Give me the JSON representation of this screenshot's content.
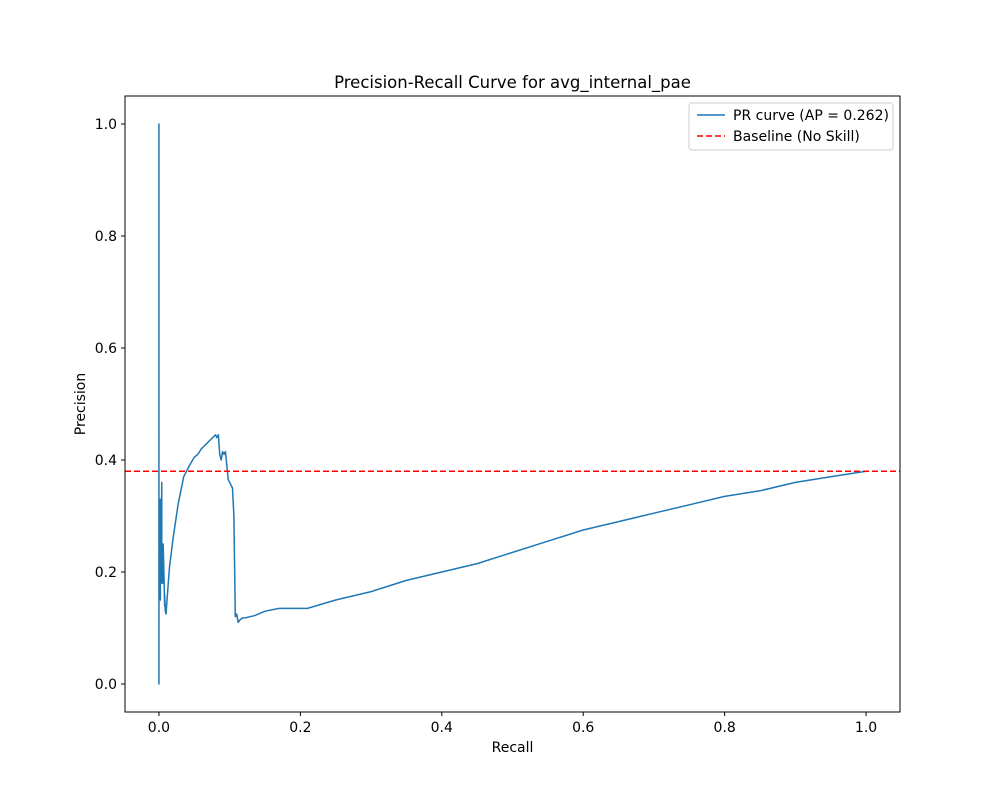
{
  "chart_data": {
    "type": "line",
    "title": "Precision-Recall Curve for avg_internal_pae",
    "xlabel": "Recall",
    "ylabel": "Precision",
    "xlim": [
      -0.048,
      1.048
    ],
    "ylim": [
      -0.05,
      1.05
    ],
    "xticks": [
      "0.0",
      "0.2",
      "0.4",
      "0.6",
      "0.8",
      "1.0"
    ],
    "yticks": [
      "0.0",
      "0.2",
      "0.4",
      "0.6",
      "0.8",
      "1.0"
    ],
    "grid": false,
    "legend_position": "top-right",
    "series": [
      {
        "name": "PR curve (AP = 0.262)",
        "color": "#1f77b4",
        "style": "solid",
        "x": [
          0.0,
          0.0,
          0.0,
          0.0,
          0.001,
          0.002,
          0.002,
          0.003,
          0.004,
          0.004,
          0.005,
          0.006,
          0.006,
          0.007,
          0.008,
          0.008,
          0.009,
          0.01,
          0.012,
          0.015,
          0.02,
          0.027,
          0.035,
          0.043,
          0.05,
          0.055,
          0.06,
          0.064,
          0.068,
          0.072,
          0.076,
          0.08,
          0.082,
          0.084,
          0.086,
          0.088,
          0.09,
          0.092,
          0.094,
          0.096,
          0.098,
          0.1,
          0.102,
          0.104,
          0.106,
          0.108,
          0.11,
          0.112,
          0.115,
          0.118,
          0.122,
          0.128,
          0.135,
          0.15,
          0.17,
          0.19,
          0.21,
          0.25,
          0.3,
          0.35,
          0.4,
          0.45,
          0.5,
          0.55,
          0.6,
          0.65,
          0.7,
          0.75,
          0.8,
          0.85,
          0.9,
          0.95,
          1.0
        ],
        "y": [
          0.0,
          1.0,
          0.0,
          0.15,
          0.3,
          0.15,
          0.33,
          0.24,
          0.36,
          0.18,
          0.24,
          0.18,
          0.25,
          0.2,
          0.14,
          0.16,
          0.13,
          0.125,
          0.16,
          0.21,
          0.26,
          0.32,
          0.37,
          0.39,
          0.405,
          0.41,
          0.42,
          0.425,
          0.43,
          0.435,
          0.44,
          0.445,
          0.44,
          0.445,
          0.41,
          0.4,
          0.415,
          0.41,
          0.415,
          0.39,
          0.365,
          0.36,
          0.355,
          0.35,
          0.3,
          0.12,
          0.125,
          0.11,
          0.115,
          0.118,
          0.118,
          0.12,
          0.122,
          0.13,
          0.135,
          0.135,
          0.135,
          0.15,
          0.165,
          0.185,
          0.2,
          0.215,
          0.235,
          0.255,
          0.275,
          0.29,
          0.305,
          0.32,
          0.335,
          0.345,
          0.36,
          0.37,
          0.38
        ]
      },
      {
        "name": "Baseline (No Skill)",
        "color": "#ff0000",
        "style": "dashed",
        "x": [
          -0.048,
          1.048
        ],
        "y": [
          0.38,
          0.38
        ]
      }
    ]
  }
}
